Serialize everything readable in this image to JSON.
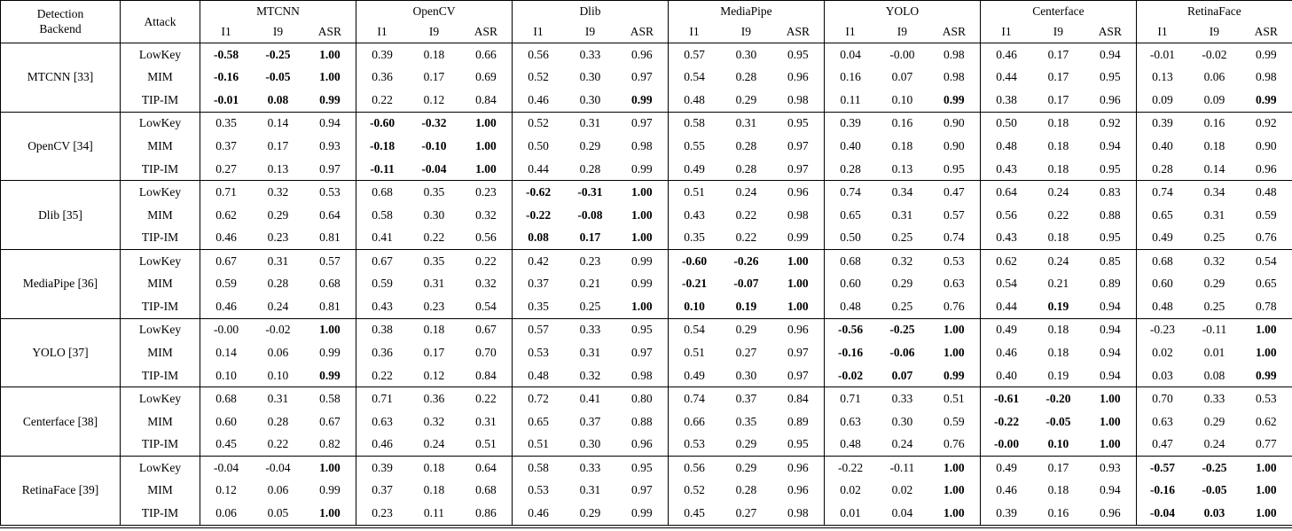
{
  "table": {
    "corner_header": [
      "Detection",
      "Backend"
    ],
    "attack_header": "Attack",
    "sub_headers": [
      "I1",
      "I9",
      "ASR"
    ],
    "groups": [
      "MTCNN",
      "OpenCV",
      "Dlib",
      "MediaPipe",
      "YOLO",
      "Centerface",
      "RetinaFace"
    ],
    "row_groups": [
      {
        "backend": "MTCNN [33]",
        "rows": [
          {
            "attack": "LowKey",
            "values": [
              "-0.58",
              "-0.25",
              "1.00",
              "0.39",
              "0.18",
              "0.66",
              "0.56",
              "0.33",
              "0.96",
              "0.57",
              "0.30",
              "0.95",
              "0.04",
              "-0.00",
              "0.98",
              "0.46",
              "0.17",
              "0.94",
              "-0.01",
              "-0.02",
              "0.99"
            ],
            "bold": [
              0,
              1,
              2
            ]
          },
          {
            "attack": "MIM",
            "values": [
              "-0.16",
              "-0.05",
              "1.00",
              "0.36",
              "0.17",
              "0.69",
              "0.52",
              "0.30",
              "0.97",
              "0.54",
              "0.28",
              "0.96",
              "0.16",
              "0.07",
              "0.98",
              "0.44",
              "0.17",
              "0.95",
              "0.13",
              "0.06",
              "0.98"
            ],
            "bold": [
              0,
              1,
              2
            ]
          },
          {
            "attack": "TIP-IM",
            "values": [
              "-0.01",
              "0.08",
              "0.99",
              "0.22",
              "0.12",
              "0.84",
              "0.46",
              "0.30",
              "0.99",
              "0.48",
              "0.29",
              "0.98",
              "0.11",
              "0.10",
              "0.99",
              "0.38",
              "0.17",
              "0.96",
              "0.09",
              "0.09",
              "0.99"
            ],
            "bold": [
              0,
              1,
              2,
              8,
              14,
              20
            ]
          }
        ]
      },
      {
        "backend": "OpenCV [34]",
        "rows": [
          {
            "attack": "LowKey",
            "values": [
              "0.35",
              "0.14",
              "0.94",
              "-0.60",
              "-0.32",
              "1.00",
              "0.52",
              "0.31",
              "0.97",
              "0.58",
              "0.31",
              "0.95",
              "0.39",
              "0.16",
              "0.90",
              "0.50",
              "0.18",
              "0.92",
              "0.39",
              "0.16",
              "0.92"
            ],
            "bold": [
              3,
              4,
              5
            ]
          },
          {
            "attack": "MIM",
            "values": [
              "0.37",
              "0.17",
              "0.93",
              "-0.18",
              "-0.10",
              "1.00",
              "0.50",
              "0.29",
              "0.98",
              "0.55",
              "0.28",
              "0.97",
              "0.40",
              "0.18",
              "0.90",
              "0.48",
              "0.18",
              "0.94",
              "0.40",
              "0.18",
              "0.90"
            ],
            "bold": [
              3,
              4,
              5
            ]
          },
          {
            "attack": "TIP-IM",
            "values": [
              "0.27",
              "0.13",
              "0.97",
              "-0.11",
              "-0.04",
              "1.00",
              "0.44",
              "0.28",
              "0.99",
              "0.49",
              "0.28",
              "0.97",
              "0.28",
              "0.13",
              "0.95",
              "0.43",
              "0.18",
              "0.95",
              "0.28",
              "0.14",
              "0.96"
            ],
            "bold": [
              3,
              4,
              5
            ]
          }
        ]
      },
      {
        "backend": "Dlib [35]",
        "rows": [
          {
            "attack": "LowKey",
            "values": [
              "0.71",
              "0.32",
              "0.53",
              "0.68",
              "0.35",
              "0.23",
              "-0.62",
              "-0.31",
              "1.00",
              "0.51",
              "0.24",
              "0.96",
              "0.74",
              "0.34",
              "0.47",
              "0.64",
              "0.24",
              "0.83",
              "0.74",
              "0.34",
              "0.48"
            ],
            "bold": [
              6,
              7,
              8
            ]
          },
          {
            "attack": "MIM",
            "values": [
              "0.62",
              "0.29",
              "0.64",
              "0.58",
              "0.30",
              "0.32",
              "-0.22",
              "-0.08",
              "1.00",
              "0.43",
              "0.22",
              "0.98",
              "0.65",
              "0.31",
              "0.57",
              "0.56",
              "0.22",
              "0.88",
              "0.65",
              "0.31",
              "0.59"
            ],
            "bold": [
              6,
              7,
              8
            ]
          },
          {
            "attack": "TIP-IM",
            "values": [
              "0.46",
              "0.23",
              "0.81",
              "0.41",
              "0.22",
              "0.56",
              "0.08",
              "0.17",
              "1.00",
              "0.35",
              "0.22",
              "0.99",
              "0.50",
              "0.25",
              "0.74",
              "0.43",
              "0.18",
              "0.95",
              "0.49",
              "0.25",
              "0.76"
            ],
            "bold": [
              6,
              7,
              8
            ]
          }
        ]
      },
      {
        "backend": "MediaPipe [36]",
        "rows": [
          {
            "attack": "LowKey",
            "values": [
              "0.67",
              "0.31",
              "0.57",
              "0.67",
              "0.35",
              "0.22",
              "0.42",
              "0.23",
              "0.99",
              "-0.60",
              "-0.26",
              "1.00",
              "0.68",
              "0.32",
              "0.53",
              "0.62",
              "0.24",
              "0.85",
              "0.68",
              "0.32",
              "0.54"
            ],
            "bold": [
              9,
              10,
              11
            ]
          },
          {
            "attack": "MIM",
            "values": [
              "0.59",
              "0.28",
              "0.68",
              "0.59",
              "0.31",
              "0.32",
              "0.37",
              "0.21",
              "0.99",
              "-0.21",
              "-0.07",
              "1.00",
              "0.60",
              "0.29",
              "0.63",
              "0.54",
              "0.21",
              "0.89",
              "0.60",
              "0.29",
              "0.65"
            ],
            "bold": [
              9,
              10,
              11
            ]
          },
          {
            "attack": "TIP-IM",
            "values": [
              "0.46",
              "0.24",
              "0.81",
              "0.43",
              "0.23",
              "0.54",
              "0.35",
              "0.25",
              "1.00",
              "0.10",
              "0.19",
              "1.00",
              "0.48",
              "0.25",
              "0.76",
              "0.44",
              "0.19",
              "0.94",
              "0.48",
              "0.25",
              "0.78"
            ],
            "bold": [
              8,
              9,
              10,
              11,
              16
            ]
          }
        ]
      },
      {
        "backend": "YOLO [37]",
        "rows": [
          {
            "attack": "LowKey",
            "values": [
              "-0.00",
              "-0.02",
              "1.00",
              "0.38",
              "0.18",
              "0.67",
              "0.57",
              "0.33",
              "0.95",
              "0.54",
              "0.29",
              "0.96",
              "-0.56",
              "-0.25",
              "1.00",
              "0.49",
              "0.18",
              "0.94",
              "-0.23",
              "-0.11",
              "1.00"
            ],
            "bold": [
              2,
              12,
              13,
              14,
              20
            ]
          },
          {
            "attack": "MIM",
            "values": [
              "0.14",
              "0.06",
              "0.99",
              "0.36",
              "0.17",
              "0.70",
              "0.53",
              "0.31",
              "0.97",
              "0.51",
              "0.27",
              "0.97",
              "-0.16",
              "-0.06",
              "1.00",
              "0.46",
              "0.18",
              "0.94",
              "0.02",
              "0.01",
              "1.00"
            ],
            "bold": [
              12,
              13,
              14,
              20
            ]
          },
          {
            "attack": "TIP-IM",
            "values": [
              "0.10",
              "0.10",
              "0.99",
              "0.22",
              "0.12",
              "0.84",
              "0.48",
              "0.32",
              "0.98",
              "0.49",
              "0.30",
              "0.97",
              "-0.02",
              "0.07",
              "0.99",
              "0.40",
              "0.19",
              "0.94",
              "0.03",
              "0.08",
              "0.99"
            ],
            "bold": [
              2,
              12,
              13,
              14,
              20
            ]
          }
        ]
      },
      {
        "backend": "Centerface [38]",
        "rows": [
          {
            "attack": "LowKey",
            "values": [
              "0.68",
              "0.31",
              "0.58",
              "0.71",
              "0.36",
              "0.22",
              "0.72",
              "0.41",
              "0.80",
              "0.74",
              "0.37",
              "0.84",
              "0.71",
              "0.33",
              "0.51",
              "-0.61",
              "-0.20",
              "1.00",
              "0.70",
              "0.33",
              "0.53"
            ],
            "bold": [
              15,
              16,
              17
            ]
          },
          {
            "attack": "MIM",
            "values": [
              "0.60",
              "0.28",
              "0.67",
              "0.63",
              "0.32",
              "0.31",
              "0.65",
              "0.37",
              "0.88",
              "0.66",
              "0.35",
              "0.89",
              "0.63",
              "0.30",
              "0.59",
              "-0.22",
              "-0.05",
              "1.00",
              "0.63",
              "0.29",
              "0.62"
            ],
            "bold": [
              15,
              16,
              17
            ]
          },
          {
            "attack": "TIP-IM",
            "values": [
              "0.45",
              "0.22",
              "0.82",
              "0.46",
              "0.24",
              "0.51",
              "0.51",
              "0.30",
              "0.96",
              "0.53",
              "0.29",
              "0.95",
              "0.48",
              "0.24",
              "0.76",
              "-0.00",
              "0.10",
              "1.00",
              "0.47",
              "0.24",
              "0.77"
            ],
            "bold": [
              15,
              16,
              17
            ]
          }
        ]
      },
      {
        "backend": "RetinaFace [39]",
        "rows": [
          {
            "attack": "LowKey",
            "values": [
              "-0.04",
              "-0.04",
              "1.00",
              "0.39",
              "0.18",
              "0.64",
              "0.58",
              "0.33",
              "0.95",
              "0.56",
              "0.29",
              "0.96",
              "-0.22",
              "-0.11",
              "1.00",
              "0.49",
              "0.17",
              "0.93",
              "-0.57",
              "-0.25",
              "1.00"
            ],
            "bold": [
              2,
              14,
              18,
              19,
              20
            ]
          },
          {
            "attack": "MIM",
            "values": [
              "0.12",
              "0.06",
              "0.99",
              "0.37",
              "0.18",
              "0.68",
              "0.53",
              "0.31",
              "0.97",
              "0.52",
              "0.28",
              "0.96",
              "0.02",
              "0.02",
              "1.00",
              "0.46",
              "0.18",
              "0.94",
              "-0.16",
              "-0.05",
              "1.00"
            ],
            "bold": [
              14,
              18,
              19,
              20
            ]
          },
          {
            "attack": "TIP-IM",
            "values": [
              "0.06",
              "0.05",
              "1.00",
              "0.23",
              "0.11",
              "0.86",
              "0.46",
              "0.29",
              "0.99",
              "0.45",
              "0.27",
              "0.98",
              "0.01",
              "0.04",
              "1.00",
              "0.39",
              "0.16",
              "0.96",
              "-0.04",
              "0.03",
              "1.00"
            ],
            "bold": [
              2,
              14,
              18,
              19,
              20
            ]
          }
        ]
      }
    ]
  }
}
